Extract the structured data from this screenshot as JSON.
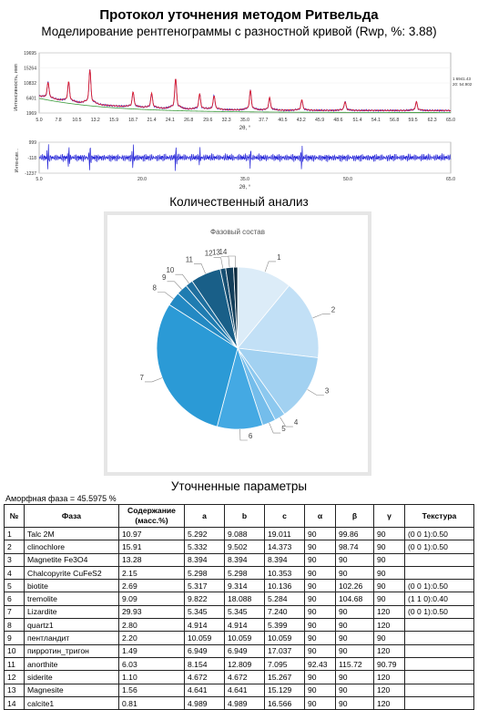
{
  "header": {
    "title": "Протокол уточнения методом Ритвельда",
    "subtitle": "Моделирование рентгенограммы с разностной кривой (Rwp, %: 3.88)"
  },
  "xrd_plot": {
    "type": "line",
    "ylabel": "Интенсивность, имп",
    "xlabel": "2θ, °",
    "y_ticks": [
      "19695",
      "15264",
      "10832",
      "6401",
      "1969"
    ],
    "x_ticks": [
      "5.0",
      "7.8",
      "10.5",
      "13.2",
      "15.9",
      "18.7",
      "21.4",
      "24.1",
      "26.8",
      "29.6",
      "32.3",
      "35.0",
      "37.7",
      "40.5",
      "43.2",
      "45.9",
      "48.6",
      "51.4",
      "54.1",
      "56.8",
      "59.5",
      "62.3",
      "65.0"
    ],
    "xlim": [
      5.0,
      65.0
    ],
    "ylim": [
      1969,
      19695
    ],
    "side_labels": [
      "1 6941.43",
      "20: 54.902"
    ],
    "colors": {
      "observed": "#2b2bd9",
      "calculated": "#e0202c",
      "background": "#3a9a3a"
    },
    "peaks": [
      {
        "x": 6.3,
        "y": 10500
      },
      {
        "x": 9.3,
        "y": 10400
      },
      {
        "x": 12.4,
        "y": 13500
      },
      {
        "x": 18.7,
        "y": 7600
      },
      {
        "x": 21.4,
        "y": 7200
      },
      {
        "x": 24.9,
        "y": 11100
      },
      {
        "x": 28.4,
        "y": 7000
      },
      {
        "x": 30.5,
        "y": 6600
      },
      {
        "x": 35.8,
        "y": 7900
      },
      {
        "x": 38.6,
        "y": 6000
      },
      {
        "x": 43.3,
        "y": 5400
      },
      {
        "x": 49.6,
        "y": 5000
      },
      {
        "x": 60.0,
        "y": 4900
      }
    ]
  },
  "diff_plot": {
    "type": "line",
    "ylabel": "Интенсив...",
    "xlabel": "2θ, °",
    "y_ticks": [
      "999",
      "-118",
      "-1237"
    ],
    "x_ticks": [
      "5.0",
      "20.0",
      "35.0",
      "50.0",
      "65.0"
    ],
    "xlim": [
      5.0,
      65.0
    ],
    "ylim": [
      -1237,
      999
    ],
    "color": "#2b2bd9"
  },
  "quant": {
    "heading": "Количественный анализ",
    "pie_title": "Фазовый состав"
  },
  "chart_data": {
    "type": "pie",
    "title": "Фазовый состав",
    "labels": [
      "1",
      "2",
      "3",
      "4",
      "5",
      "6",
      "7",
      "8",
      "9",
      "10",
      "11",
      "12",
      "13",
      "14"
    ],
    "values": [
      10.97,
      15.91,
      13.28,
      2.15,
      2.69,
      9.09,
      29.93,
      2.8,
      2.2,
      1.49,
      6.03,
      1.1,
      1.56,
      0.81
    ],
    "colors": [
      "#dcecf8",
      "#c2e0f6",
      "#a2d1f1",
      "#8cc8ef",
      "#74bdeb",
      "#44a9e3",
      "#2b9ad6",
      "#2389c3",
      "#1f7cb1",
      "#1e6f9f",
      "#195f88",
      "#174f72",
      "#123e5a",
      "#0c2a3e"
    ]
  },
  "params": {
    "heading": "Уточненные параметры",
    "amorphous": "Аморфная фаза = 45.5975 %",
    "columns": [
      "№",
      "Фаза",
      "Содержание (масс.%)",
      "a",
      "b",
      "c",
      "α",
      "β",
      "γ",
      "Текстура"
    ],
    "rows": [
      [
        "1",
        "Talc 2M",
        "10.97",
        "5.292",
        "9.088",
        "19.011",
        "90",
        "99.86",
        "90",
        "(0 0 1):0.50"
      ],
      [
        "2",
        "clinochlore",
        "15.91",
        "5.332",
        "9.502",
        "14.373",
        "90",
        "98.74",
        "90",
        "(0 0 1):0.50"
      ],
      [
        "3",
        "Magnetite Fe3O4",
        "13.28",
        "8.394",
        "8.394",
        "8.394",
        "90",
        "90",
        "90",
        ""
      ],
      [
        "4",
        "Chalcopyrite CuFeS2",
        "2.15",
        "5.298",
        "5.298",
        "10.353",
        "90",
        "90",
        "90",
        ""
      ],
      [
        "5",
        "biotite",
        "2.69",
        "5.317",
        "9.314",
        "10.136",
        "90",
        "102.26",
        "90",
        "(0 0 1):0.50"
      ],
      [
        "6",
        "tremolite",
        "9.09",
        "9.822",
        "18.088",
        "5.284",
        "90",
        "104.68",
        "90",
        "(1 1 0):0.40"
      ],
      [
        "7",
        "Lizardite",
        "29.93",
        "5.345",
        "5.345",
        "7.240",
        "90",
        "90",
        "120",
        "(0 0 1):0.50"
      ],
      [
        "8",
        "quartz1",
        "2.80",
        "4.914",
        "4.914",
        "5.399",
        "90",
        "90",
        "120",
        ""
      ],
      [
        "9",
        "пентландит",
        "2.20",
        "10.059",
        "10.059",
        "10.059",
        "90",
        "90",
        "90",
        ""
      ],
      [
        "10",
        "пирротин_тригон",
        "1.49",
        "6.949",
        "6.949",
        "17.037",
        "90",
        "90",
        "120",
        ""
      ],
      [
        "11",
        "anorthite",
        "6.03",
        "8.154",
        "12.809",
        "7.095",
        "92.43",
        "115.72",
        "90.79",
        ""
      ],
      [
        "12",
        "siderite",
        "1.10",
        "4.672",
        "4.672",
        "15.267",
        "90",
        "90",
        "120",
        ""
      ],
      [
        "13",
        "Magnesite",
        "1.56",
        "4.641",
        "4.641",
        "15.129",
        "90",
        "90",
        "120",
        ""
      ],
      [
        "14",
        "calcite1",
        "0.81",
        "4.989",
        "4.989",
        "16.566",
        "90",
        "90",
        "120",
        ""
      ]
    ]
  }
}
